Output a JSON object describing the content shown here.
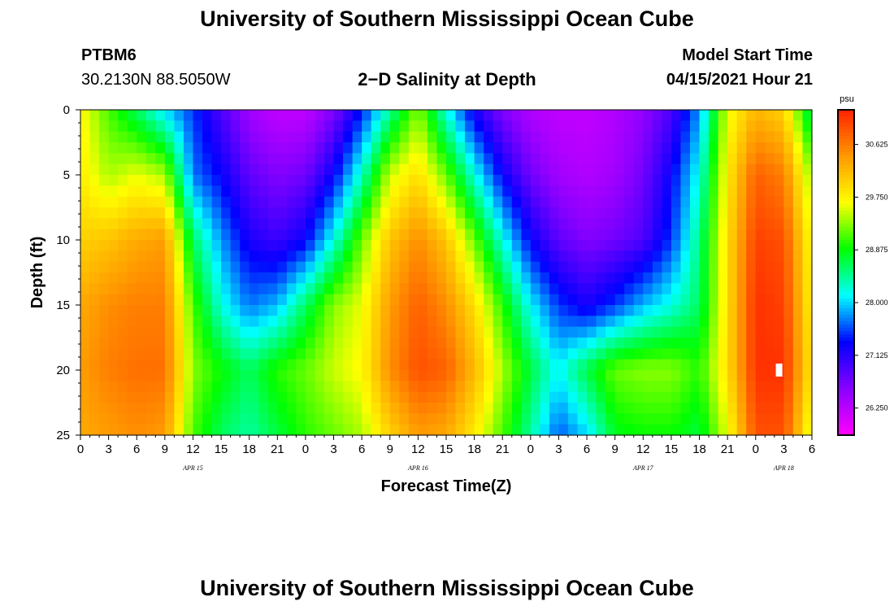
{
  "page": {
    "title_top": "University of Southern Mississippi Ocean Cube",
    "title_bottom": "University of Southern Mississippi Ocean Cube",
    "station": "PTBM6",
    "location": "30.2130N  88.5050W",
    "plot_title": "2−D Salinity at Depth",
    "model_start_label": "Model Start Time",
    "model_start_value": "04/15/2021 Hour 21"
  },
  "colors": {
    "palette": [
      "#ff00ff",
      "#8800ff",
      "#0000ff",
      "#00ffff",
      "#00ff00",
      "#ffff00",
      "#ff9900",
      "#ff2200"
    ],
    "marker": "#ffffff"
  },
  "chart_data": {
    "type": "heatmap",
    "title": "2−D Salinity at Depth",
    "xlabel": "Forecast Time(Z)",
    "ylabel": "Depth (ft)",
    "x_tick_labels": [
      "0",
      "3",
      "6",
      "9",
      "12",
      "15",
      "18",
      "21",
      "0",
      "3",
      "6",
      "9",
      "12",
      "15",
      "18",
      "21",
      "0",
      "3",
      "6",
      "9",
      "12",
      "15",
      "18",
      "21",
      "0",
      "3",
      "6"
    ],
    "x_range_hours": [
      0,
      78
    ],
    "date_labels": [
      {
        "label": "APR 15",
        "hour": 12
      },
      {
        "label": "APR 16",
        "hour": 36
      },
      {
        "label": "APR 17",
        "hour": 60
      },
      {
        "label": "APR 18",
        "hour": 75
      }
    ],
    "y_ticks": [
      0,
      5,
      10,
      15,
      20,
      25
    ],
    "y_range_ft": [
      0,
      25
    ],
    "y_inverted": true,
    "colorbar": {
      "unit": "psu",
      "min": 25.8,
      "max": 31.2,
      "tick_values": [
        26.25,
        27.125,
        28.0,
        28.875,
        29.75,
        30.625
      ],
      "tick_labels": [
        "26.250",
        "27.125",
        "28.000",
        "28.875",
        "29.750",
        "30.625"
      ]
    },
    "time_hours": [
      0,
      3,
      6,
      9,
      12,
      15,
      18,
      21,
      24,
      27,
      30,
      33,
      36,
      39,
      42,
      45,
      48,
      51,
      54,
      57,
      60,
      63,
      66,
      69,
      72,
      75,
      78
    ],
    "depth_ft": [
      0,
      5,
      10,
      15,
      20,
      25
    ],
    "values": [
      [
        29.7,
        29.1,
        28.6,
        28.0,
        27.5,
        26.9,
        26.4,
        26.2,
        26.2,
        26.6,
        27.4,
        28.4,
        29.3,
        28.2,
        27.2,
        26.6,
        26.3,
        26.2,
        26.2,
        26.3,
        26.5,
        26.9,
        27.8,
        29.6,
        30.2,
        30.0,
        28.5
      ],
      [
        29.8,
        29.4,
        29.6,
        29.4,
        27.7,
        27.3,
        26.8,
        26.6,
        26.7,
        27.3,
        28.3,
        29.5,
        29.9,
        29.2,
        28.2,
        27.3,
        26.7,
        26.4,
        26.3,
        26.4,
        26.7,
        27.3,
        28.2,
        29.8,
        30.8,
        30.6,
        29.3
      ],
      [
        30.0,
        30.1,
        30.3,
        30.4,
        28.6,
        27.8,
        27.2,
        27.0,
        27.3,
        28.2,
        29.2,
        30.1,
        30.5,
        30.1,
        29.2,
        28.2,
        27.3,
        26.8,
        26.6,
        26.7,
        26.9,
        27.5,
        28.5,
        29.9,
        31.0,
        30.9,
        29.6
      ],
      [
        30.3,
        30.5,
        30.6,
        30.6,
        29.1,
        28.2,
        27.7,
        27.9,
        28.6,
        29.3,
        29.6,
        30.4,
        30.8,
        30.5,
        29.9,
        29.0,
        28.1,
        27.5,
        27.2,
        27.5,
        27.9,
        28.2,
        28.6,
        29.9,
        31.1,
        31.0,
        29.7
      ],
      [
        30.4,
        30.6,
        30.7,
        30.7,
        29.3,
        28.9,
        28.6,
        29.0,
        29.2,
        29.5,
        29.7,
        30.5,
        30.9,
        30.8,
        30.2,
        29.4,
        28.7,
        28.1,
        28.7,
        29.2,
        29.3,
        29.3,
        29.0,
        29.9,
        31.1,
        31.1,
        29.8
      ],
      [
        30.3,
        30.4,
        30.5,
        30.4,
        29.1,
        28.6,
        28.4,
        28.7,
        29.0,
        29.2,
        29.4,
        30.0,
        30.4,
        30.3,
        29.8,
        29.1,
        28.4,
        27.6,
        28.0,
        28.8,
        28.9,
        28.9,
        28.7,
        29.6,
        30.9,
        30.9,
        29.5
      ]
    ],
    "marker_point": {
      "hour": 74.5,
      "depth_ft": 20
    }
  }
}
